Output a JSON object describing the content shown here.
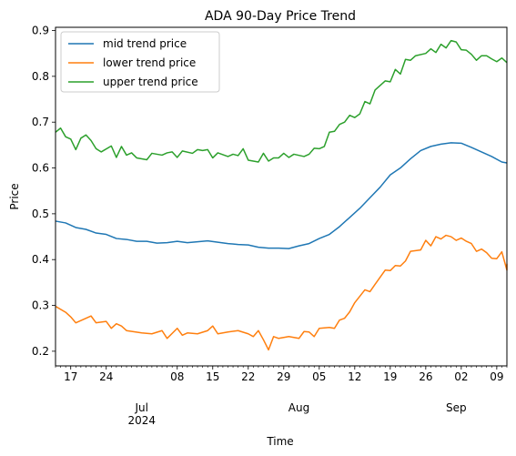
{
  "chart_data": {
    "type": "line",
    "title": "ADA 90-Day Price Trend",
    "xlabel": "Time",
    "ylabel": "Price",
    "x_start": "2024-06-14",
    "x_end": "2024-09-11",
    "ylim": [
      0.168,
      0.907
    ],
    "grid": false,
    "legend_position": "top-left",
    "x_ticks": [
      {
        "date": "2024-06-17",
        "label": "17"
      },
      {
        "date": "2024-06-24",
        "label": "24"
      },
      {
        "date": "2024-07-08",
        "label": "08"
      },
      {
        "date": "2024-07-15",
        "label": "15"
      },
      {
        "date": "2024-07-22",
        "label": "22"
      },
      {
        "date": "2024-07-29",
        "label": "29"
      },
      {
        "date": "2024-08-05",
        "label": "05"
      },
      {
        "date": "2024-08-12",
        "label": "12"
      },
      {
        "date": "2024-08-19",
        "label": "19"
      },
      {
        "date": "2024-08-26",
        "label": "26"
      },
      {
        "date": "2024-09-02",
        "label": "02"
      },
      {
        "date": "2024-09-09",
        "label": "09"
      }
    ],
    "month_labels": [
      {
        "date": "2024-07-01",
        "label": "Jul",
        "sublabel": "2024"
      },
      {
        "date": "2024-08-01",
        "label": "Aug",
        "sublabel": ""
      },
      {
        "date": "2024-09-01",
        "label": "Sep",
        "sublabel": ""
      }
    ],
    "y_ticks": [
      0.2,
      0.3,
      0.4,
      0.5,
      0.6,
      0.7,
      0.8,
      0.9
    ],
    "series": [
      {
        "name": "mid trend price",
        "color": "#1f77b4",
        "points": [
          [
            "2024-06-14",
            0.484
          ],
          [
            "2024-06-16",
            0.48
          ],
          [
            "2024-06-18",
            0.47
          ],
          [
            "2024-06-20",
            0.466
          ],
          [
            "2024-06-22",
            0.458
          ],
          [
            "2024-06-24",
            0.455
          ],
          [
            "2024-06-26",
            0.446
          ],
          [
            "2024-06-28",
            0.444
          ],
          [
            "2024-06-30",
            0.44
          ],
          [
            "2024-07-02",
            0.44
          ],
          [
            "2024-07-04",
            0.436
          ],
          [
            "2024-07-06",
            0.437
          ],
          [
            "2024-07-08",
            0.44
          ],
          [
            "2024-07-10",
            0.437
          ],
          [
            "2024-07-12",
            0.439
          ],
          [
            "2024-07-14",
            0.441
          ],
          [
            "2024-07-16",
            0.438
          ],
          [
            "2024-07-18",
            0.435
          ],
          [
            "2024-07-20",
            0.433
          ],
          [
            "2024-07-22",
            0.432
          ],
          [
            "2024-07-24",
            0.427
          ],
          [
            "2024-07-26",
            0.425
          ],
          [
            "2024-07-28",
            0.425
          ],
          [
            "2024-07-30",
            0.424
          ],
          [
            "2024-08-01",
            0.43
          ],
          [
            "2024-08-03",
            0.435
          ],
          [
            "2024-08-05",
            0.446
          ],
          [
            "2024-08-07",
            0.455
          ],
          [
            "2024-08-09",
            0.472
          ],
          [
            "2024-08-11",
            0.492
          ],
          [
            "2024-08-13",
            0.512
          ],
          [
            "2024-08-15",
            0.535
          ],
          [
            "2024-08-17",
            0.558
          ],
          [
            "2024-08-19",
            0.585
          ],
          [
            "2024-08-21",
            0.6
          ],
          [
            "2024-08-23",
            0.62
          ],
          [
            "2024-08-25",
            0.638
          ],
          [
            "2024-08-27",
            0.647
          ],
          [
            "2024-08-29",
            0.652
          ],
          [
            "2024-08-31",
            0.655
          ],
          [
            "2024-09-02",
            0.654
          ],
          [
            "2024-09-04",
            0.645
          ],
          [
            "2024-09-06",
            0.635
          ],
          [
            "2024-09-08",
            0.625
          ],
          [
            "2024-09-10",
            0.613
          ],
          [
            "2024-09-11",
            0.611
          ]
        ]
      },
      {
        "name": "lower trend price",
        "color": "#ff7f0e",
        "points": [
          [
            "2024-06-14",
            0.298
          ],
          [
            "2024-06-16",
            0.285
          ],
          [
            "2024-06-17",
            0.275
          ],
          [
            "2024-06-18",
            0.262
          ],
          [
            "2024-06-20",
            0.272
          ],
          [
            "2024-06-21",
            0.277
          ],
          [
            "2024-06-22",
            0.262
          ],
          [
            "2024-06-24",
            0.265
          ],
          [
            "2024-06-25",
            0.25
          ],
          [
            "2024-06-26",
            0.26
          ],
          [
            "2024-06-27",
            0.255
          ],
          [
            "2024-06-28",
            0.245
          ],
          [
            "2024-07-01",
            0.24
          ],
          [
            "2024-07-03",
            0.238
          ],
          [
            "2024-07-05",
            0.245
          ],
          [
            "2024-07-06",
            0.228
          ],
          [
            "2024-07-08",
            0.25
          ],
          [
            "2024-07-09",
            0.235
          ],
          [
            "2024-07-10",
            0.24
          ],
          [
            "2024-07-12",
            0.238
          ],
          [
            "2024-07-14",
            0.245
          ],
          [
            "2024-07-15",
            0.255
          ],
          [
            "2024-07-16",
            0.238
          ],
          [
            "2024-07-18",
            0.242
          ],
          [
            "2024-07-20",
            0.245
          ],
          [
            "2024-07-22",
            0.238
          ],
          [
            "2024-07-23",
            0.232
          ],
          [
            "2024-07-24",
            0.245
          ],
          [
            "2024-07-25",
            0.225
          ],
          [
            "2024-07-26",
            0.203
          ],
          [
            "2024-07-27",
            0.232
          ],
          [
            "2024-07-28",
            0.228
          ],
          [
            "2024-07-30",
            0.232
          ],
          [
            "2024-08-01",
            0.228
          ],
          [
            "2024-08-02",
            0.243
          ],
          [
            "2024-08-03",
            0.242
          ],
          [
            "2024-08-04",
            0.232
          ],
          [
            "2024-08-05",
            0.25
          ],
          [
            "2024-08-07",
            0.252
          ],
          [
            "2024-08-08",
            0.25
          ],
          [
            "2024-08-09",
            0.268
          ],
          [
            "2024-08-10",
            0.272
          ],
          [
            "2024-08-11",
            0.286
          ],
          [
            "2024-08-12",
            0.306
          ],
          [
            "2024-08-14",
            0.334
          ],
          [
            "2024-08-15",
            0.33
          ],
          [
            "2024-08-16",
            0.346
          ],
          [
            "2024-08-18",
            0.377
          ],
          [
            "2024-08-19",
            0.376
          ],
          [
            "2024-08-20",
            0.387
          ],
          [
            "2024-08-21",
            0.386
          ],
          [
            "2024-08-22",
            0.397
          ],
          [
            "2024-08-23",
            0.418
          ],
          [
            "2024-08-25",
            0.421
          ],
          [
            "2024-08-26",
            0.442
          ],
          [
            "2024-08-27",
            0.43
          ],
          [
            "2024-08-28",
            0.45
          ],
          [
            "2024-08-29",
            0.445
          ],
          [
            "2024-08-30",
            0.453
          ],
          [
            "2024-08-31",
            0.45
          ],
          [
            "2024-09-01",
            0.442
          ],
          [
            "2024-09-02",
            0.447
          ],
          [
            "2024-09-03",
            0.44
          ],
          [
            "2024-09-04",
            0.435
          ],
          [
            "2024-09-05",
            0.418
          ],
          [
            "2024-09-06",
            0.423
          ],
          [
            "2024-09-07",
            0.415
          ],
          [
            "2024-09-08",
            0.403
          ],
          [
            "2024-09-09",
            0.402
          ],
          [
            "2024-09-10",
            0.417
          ],
          [
            "2024-09-11",
            0.377
          ],
          [
            "2024-09-11",
            0.391
          ]
        ]
      },
      {
        "name": "upper trend price",
        "color": "#2ca02c",
        "points": [
          [
            "2024-06-14",
            0.678
          ],
          [
            "2024-06-15",
            0.687
          ],
          [
            "2024-06-16",
            0.668
          ],
          [
            "2024-06-17",
            0.663
          ],
          [
            "2024-06-18",
            0.64
          ],
          [
            "2024-06-19",
            0.665
          ],
          [
            "2024-06-20",
            0.672
          ],
          [
            "2024-06-21",
            0.66
          ],
          [
            "2024-06-22",
            0.642
          ],
          [
            "2024-06-23",
            0.635
          ],
          [
            "2024-06-25",
            0.648
          ],
          [
            "2024-06-26",
            0.623
          ],
          [
            "2024-06-27",
            0.647
          ],
          [
            "2024-06-28",
            0.628
          ],
          [
            "2024-06-29",
            0.633
          ],
          [
            "2024-06-30",
            0.622
          ],
          [
            "2024-07-02",
            0.618
          ],
          [
            "2024-07-03",
            0.632
          ],
          [
            "2024-07-05",
            0.628
          ],
          [
            "2024-07-06",
            0.633
          ],
          [
            "2024-07-07",
            0.635
          ],
          [
            "2024-07-08",
            0.623
          ],
          [
            "2024-07-09",
            0.637
          ],
          [
            "2024-07-11",
            0.632
          ],
          [
            "2024-07-12",
            0.64
          ],
          [
            "2024-07-13",
            0.638
          ],
          [
            "2024-07-14",
            0.64
          ],
          [
            "2024-07-15",
            0.622
          ],
          [
            "2024-07-16",
            0.633
          ],
          [
            "2024-07-18",
            0.625
          ],
          [
            "2024-07-19",
            0.63
          ],
          [
            "2024-07-20",
            0.627
          ],
          [
            "2024-07-21",
            0.642
          ],
          [
            "2024-07-22",
            0.617
          ],
          [
            "2024-07-24",
            0.613
          ],
          [
            "2024-07-25",
            0.632
          ],
          [
            "2024-07-26",
            0.615
          ],
          [
            "2024-07-27",
            0.622
          ],
          [
            "2024-07-28",
            0.622
          ],
          [
            "2024-07-29",
            0.632
          ],
          [
            "2024-07-30",
            0.623
          ],
          [
            "2024-07-31",
            0.63
          ],
          [
            "2024-08-02",
            0.625
          ],
          [
            "2024-08-03",
            0.63
          ],
          [
            "2024-08-04",
            0.643
          ],
          [
            "2024-08-05",
            0.642
          ],
          [
            "2024-08-06",
            0.647
          ],
          [
            "2024-08-07",
            0.678
          ],
          [
            "2024-08-08",
            0.68
          ],
          [
            "2024-08-09",
            0.695
          ],
          [
            "2024-08-10",
            0.7
          ],
          [
            "2024-08-11",
            0.715
          ],
          [
            "2024-08-12",
            0.71
          ],
          [
            "2024-08-13",
            0.718
          ],
          [
            "2024-08-14",
            0.745
          ],
          [
            "2024-08-15",
            0.74
          ],
          [
            "2024-08-16",
            0.77
          ],
          [
            "2024-08-17",
            0.78
          ],
          [
            "2024-08-18",
            0.79
          ],
          [
            "2024-08-19",
            0.788
          ],
          [
            "2024-08-20",
            0.815
          ],
          [
            "2024-08-21",
            0.805
          ],
          [
            "2024-08-22",
            0.837
          ],
          [
            "2024-08-23",
            0.835
          ],
          [
            "2024-08-24",
            0.845
          ],
          [
            "2024-08-26",
            0.85
          ],
          [
            "2024-08-27",
            0.86
          ],
          [
            "2024-08-28",
            0.852
          ],
          [
            "2024-08-29",
            0.87
          ],
          [
            "2024-08-30",
            0.862
          ],
          [
            "2024-08-31",
            0.878
          ],
          [
            "2024-09-01",
            0.875
          ],
          [
            "2024-09-02",
            0.858
          ],
          [
            "2024-09-03",
            0.857
          ],
          [
            "2024-09-04",
            0.848
          ],
          [
            "2024-09-05",
            0.835
          ],
          [
            "2024-09-06",
            0.845
          ],
          [
            "2024-09-07",
            0.845
          ],
          [
            "2024-09-08",
            0.838
          ],
          [
            "2024-09-09",
            0.832
          ],
          [
            "2024-09-10",
            0.84
          ],
          [
            "2024-09-11",
            0.83
          ]
        ]
      }
    ]
  }
}
